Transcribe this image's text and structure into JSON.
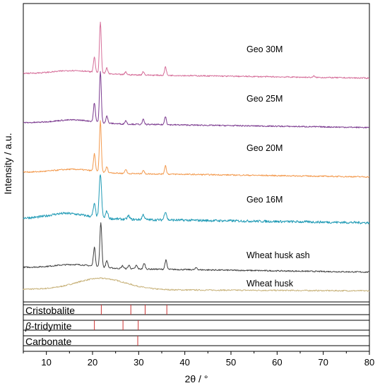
{
  "chart_data": {
    "type": "line",
    "title": "",
    "xlabel": "2θ / °",
    "ylabel": "Intensity / a.u.",
    "xlim": [
      5,
      80
    ],
    "x_ticks": [
      10,
      20,
      30,
      40,
      50,
      60,
      70,
      80
    ],
    "y_ticks_shown": false,
    "grid": false,
    "series": [
      {
        "name": "Wheat husk",
        "color": "#c8b27a",
        "baseline": 0.0,
        "peaks": [
          {
            "x": 21.8,
            "height": 0.16,
            "width": 7.5
          }
        ]
      },
      {
        "name": "Wheat husk ash",
        "color": "#3f3f3f",
        "baseline": 0.35,
        "peaks": [
          {
            "x": 21.8,
            "height": 0.63,
            "width": 0.3
          },
          {
            "x": 20.4,
            "height": 0.27,
            "width": 0.3
          },
          {
            "x": 23.1,
            "height": 0.1,
            "width": 0.3
          },
          {
            "x": 26.5,
            "height": 0.04,
            "width": 0.3
          },
          {
            "x": 27.9,
            "height": 0.05,
            "width": 0.3
          },
          {
            "x": 29.5,
            "height": 0.05,
            "width": 0.3
          },
          {
            "x": 31.2,
            "height": 0.08,
            "width": 0.3
          },
          {
            "x": 35.9,
            "height": 0.13,
            "width": 0.3
          },
          {
            "x": 42.5,
            "height": 0.03,
            "width": 0.3
          }
        ]
      },
      {
        "name": "Geo 16M",
        "color": "#1f9ab5",
        "baseline": 1.05,
        "peaks": [
          {
            "x": 21.7,
            "height": 0.62,
            "width": 0.35
          },
          {
            "x": 20.4,
            "height": 0.18,
            "width": 0.35
          },
          {
            "x": 23.1,
            "height": 0.1,
            "width": 0.35
          },
          {
            "x": 27.8,
            "height": 0.05,
            "width": 0.35
          },
          {
            "x": 31.0,
            "height": 0.07,
            "width": 0.35
          },
          {
            "x": 35.8,
            "height": 0.12,
            "width": 0.35
          },
          {
            "x": 13.0,
            "height": 0.03,
            "width": 4.0
          }
        ]
      },
      {
        "name": "Geo 20M",
        "color": "#f39a4e",
        "baseline": 1.7,
        "peaks": [
          {
            "x": 21.7,
            "height": 0.72,
            "width": 0.28
          },
          {
            "x": 20.4,
            "height": 0.25,
            "width": 0.28
          },
          {
            "x": 23.1,
            "height": 0.08,
            "width": 0.28
          },
          {
            "x": 27.2,
            "height": 0.06,
            "width": 0.28
          },
          {
            "x": 31.0,
            "height": 0.05,
            "width": 0.28
          },
          {
            "x": 35.8,
            "height": 0.12,
            "width": 0.28
          }
        ]
      },
      {
        "name": "Geo 25M",
        "color": "#7b3a8f",
        "baseline": 2.4,
        "peaks": [
          {
            "x": 21.7,
            "height": 0.72,
            "width": 0.28
          },
          {
            "x": 20.4,
            "height": 0.27,
            "width": 0.28
          },
          {
            "x": 23.1,
            "height": 0.1,
            "width": 0.28
          },
          {
            "x": 27.2,
            "height": 0.05,
            "width": 0.28
          },
          {
            "x": 31.0,
            "height": 0.07,
            "width": 0.28
          },
          {
            "x": 35.8,
            "height": 0.12,
            "width": 0.28
          }
        ]
      },
      {
        "name": "Geo 30M",
        "color": "#d66f9a",
        "baseline": 3.1,
        "peaks": [
          {
            "x": 21.7,
            "height": 0.72,
            "width": 0.28
          },
          {
            "x": 20.4,
            "height": 0.22,
            "width": 0.28
          },
          {
            "x": 23.1,
            "height": 0.08,
            "width": 0.28
          },
          {
            "x": 27.2,
            "height": 0.04,
            "width": 0.28
          },
          {
            "x": 31.0,
            "height": 0.05,
            "width": 0.28
          },
          {
            "x": 35.8,
            "height": 0.12,
            "width": 0.28
          },
          {
            "x": 68.0,
            "height": 0.02,
            "width": 0.2
          }
        ]
      }
    ],
    "reference_patterns": [
      {
        "name": "Cristobalite",
        "color": "#cc3333",
        "positions": [
          21.9,
          28.3,
          31.4,
          36.1
        ]
      },
      {
        "name": "β-tridymite",
        "color": "#cc3333",
        "positions": [
          20.4,
          26.6,
          29.9
        ]
      },
      {
        "name": "Carbonate",
        "color": "#cc3333",
        "positions": [
          29.8
        ]
      }
    ]
  }
}
